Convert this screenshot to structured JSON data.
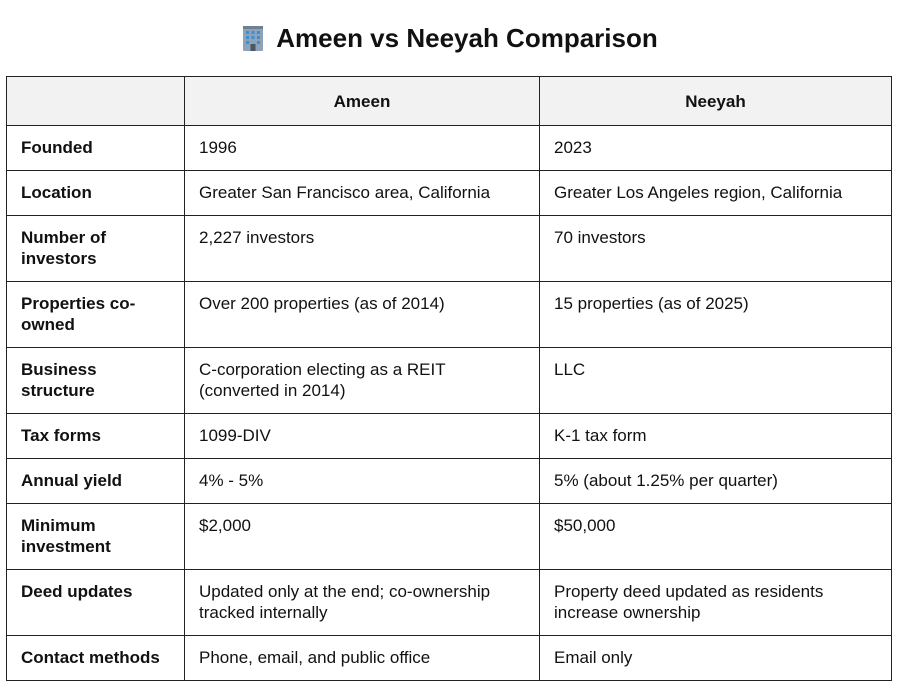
{
  "page": {
    "title": "Ameen vs Neeyah Comparison",
    "title_icon": "office-building-icon"
  },
  "table": {
    "headers": [
      "",
      "Ameen",
      "Neeyah"
    ],
    "rows": [
      {
        "label": "Founded",
        "ameen": "1996",
        "neeyah": "2023"
      },
      {
        "label": "Location",
        "ameen": "Greater San Francisco area, California",
        "neeyah": "Greater Los Angeles region, California"
      },
      {
        "label": "Number of investors",
        "ameen": "2,227 investors",
        "neeyah": "70 investors"
      },
      {
        "label": "Properties co-owned",
        "ameen": "Over 200 properties (as of 2014)",
        "neeyah": "15 properties (as of 2025)"
      },
      {
        "label": "Business structure",
        "ameen": "C-corporation electing as a REIT (converted in 2014)",
        "neeyah": "LLC"
      },
      {
        "label": "Tax forms",
        "ameen": "1099-DIV",
        "neeyah": "K-1 tax form"
      },
      {
        "label": "Annual yield",
        "ameen": "4% - 5%",
        "neeyah": "5% (about 1.25% per quarter)"
      },
      {
        "label": "Minimum investment",
        "ameen": "$2,000",
        "neeyah": "$50,000"
      },
      {
        "label": "Deed updates",
        "ameen": "Updated only at the end; co-ownership tracked internally",
        "neeyah": "Property deed updated as residents increase ownership"
      },
      {
        "label": "Contact methods",
        "ameen": "Phone, email, and public office",
        "neeyah": "Email only"
      }
    ]
  },
  "colors": {
    "header_bg": "#f2f2f2",
    "border": "#222222",
    "text": "#111111"
  }
}
